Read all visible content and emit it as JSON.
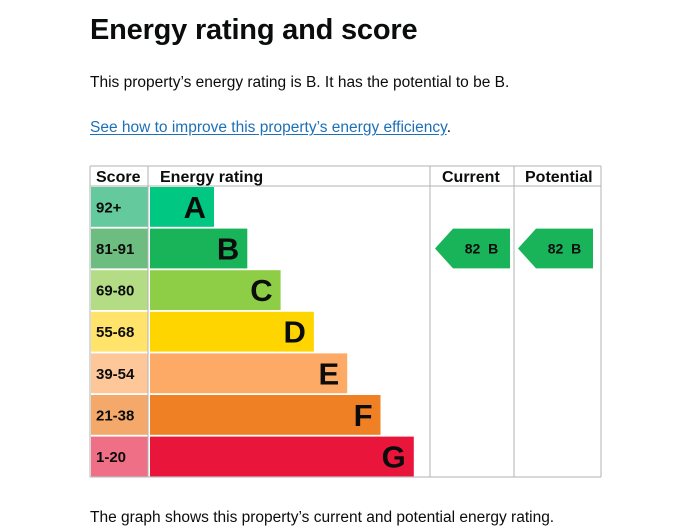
{
  "page": {
    "title": "Energy rating and score",
    "summary": "This property’s energy rating is B. It has the potential to be B.",
    "link_text": "See how to improve this property’s energy efficiency",
    "link_suffix": ".",
    "footer": "The graph shows this property’s current and potential energy rating."
  },
  "chart_data": {
    "type": "bar",
    "headers": {
      "score": "Score",
      "rating": "Energy rating",
      "current": "Current",
      "potential": "Potential"
    },
    "bands": [
      {
        "letter": "A",
        "range": "92+",
        "color": "#00c781",
        "score_bg": "#64c99d"
      },
      {
        "letter": "B",
        "range": "81-91",
        "color": "#19b459",
        "score_bg": "#6ebd80"
      },
      {
        "letter": "C",
        "range": "69-80",
        "color": "#8dce46",
        "score_bg": "#b4dc85"
      },
      {
        "letter": "D",
        "range": "55-68",
        "color": "#ffd500",
        "score_bg": "#ffe36b"
      },
      {
        "letter": "E",
        "range": "39-54",
        "color": "#fcaa65",
        "score_bg": "#fdc79a"
      },
      {
        "letter": "F",
        "range": "21-38",
        "color": "#ef8023",
        "score_bg": "#f4a96b"
      },
      {
        "letter": "G",
        "range": "1-20",
        "color": "#e9153b",
        "score_bg": "#ef6f86"
      }
    ],
    "current": {
      "score": 82,
      "band": "B",
      "label": "82  B",
      "color": "#19b459"
    },
    "potential": {
      "score": 82,
      "band": "B",
      "label": "82  B",
      "color": "#19b459"
    }
  }
}
